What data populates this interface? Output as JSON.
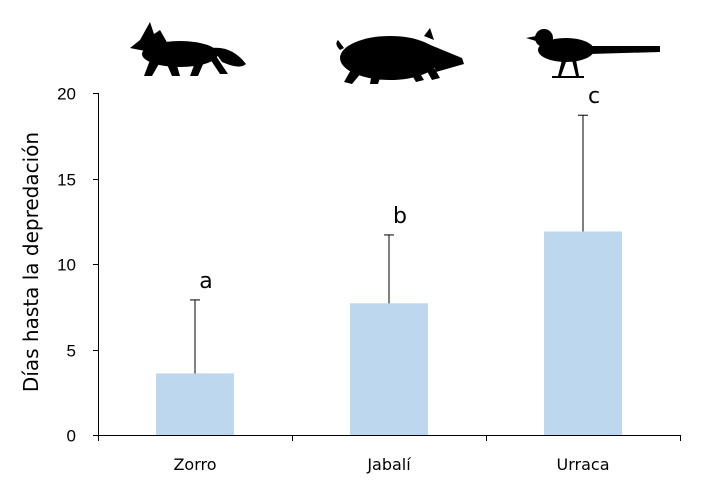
{
  "chart_data": {
    "type": "bar",
    "title": "",
    "xlabel": "",
    "ylabel": "Días hasta la depredación",
    "ylim": [
      0,
      20
    ],
    "yticks": [
      0,
      5,
      10,
      15,
      20
    ],
    "grid": false,
    "categories": [
      "Zorro",
      "Jabalí",
      "Urraca"
    ],
    "values": [
      3.6,
      7.7,
      11.9
    ],
    "error_upper": [
      4.3,
      4.0,
      6.8
    ],
    "significance_letters": [
      "a",
      "b",
      "c"
    ],
    "icons": [
      "fox-silhouette-icon",
      "wild-boar-silhouette-icon",
      "magpie-silhouette-icon"
    ],
    "bar_color": "#bdd7ee",
    "axis_color": "#000000"
  }
}
